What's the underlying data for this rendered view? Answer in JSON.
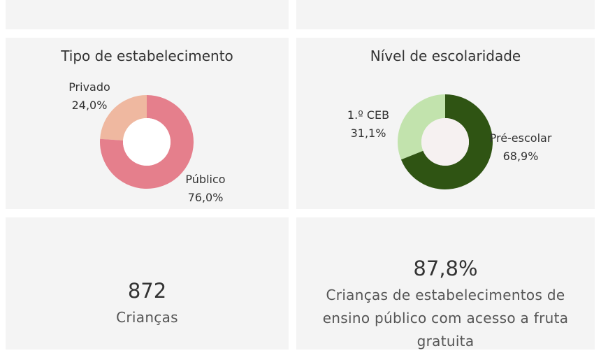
{
  "chart_data": [
    {
      "type": "pie",
      "title": "Tipo de estabelecimento",
      "slices": [
        {
          "label": "Privado",
          "value": 24.0,
          "display": "24,0%",
          "color": "#efb8a0"
        },
        {
          "label": "Público",
          "value": 76.0,
          "display": "76,0%",
          "color": "#e57f8c"
        }
      ]
    },
    {
      "type": "pie",
      "title": "Nível de escolaridade",
      "slices": [
        {
          "label": "1.º CEB",
          "value": 31.1,
          "display": "31,1%",
          "color": "#c2e3ad"
        },
        {
          "label": "Pré-escolar",
          "value": 68.9,
          "display": "68,9%",
          "color": "#2f5413"
        }
      ]
    }
  ],
  "kpis": {
    "children": {
      "value": "872",
      "label": "Crianças"
    },
    "fruit": {
      "value": "87,8%",
      "label": "Crianças de estabelecimentos de ensino público com acesso a fruta gratuita"
    }
  }
}
